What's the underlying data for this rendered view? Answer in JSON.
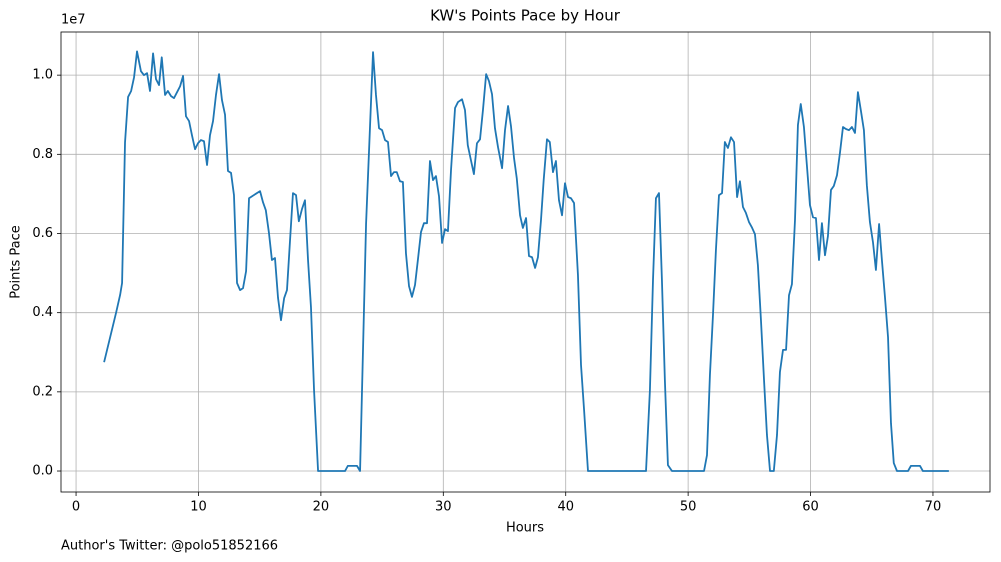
{
  "chart_data": {
    "type": "line",
    "title": "KW's Points Pace by Hour",
    "x_label": "Hours",
    "y_label": "Points Pace",
    "y_offset_label": "1e7",
    "footnote": "Author's Twitter: @polo51852166",
    "color": "#1f77b4",
    "grid": true,
    "xlim": [
      -1.23,
      74.66
    ],
    "ylim": [
      -0.053,
      1.109
    ],
    "xticks": [
      0,
      10,
      20,
      30,
      40,
      50,
      60,
      70
    ],
    "yticks": [
      {
        "value": 0,
        "label": "0.0"
      },
      0.2,
      0.4,
      0.6,
      0.8,
      {
        "value": 1,
        "label": "1.0"
      }
    ],
    "x": [
      2.29,
      3.27,
      3.6,
      3.76,
      4.0,
      4.25,
      4.5,
      4.74,
      4.98,
      5.3,
      5.55,
      5.8,
      6.04,
      6.29,
      6.53,
      6.78,
      7.0,
      7.27,
      7.5,
      7.76,
      8.0,
      8.25,
      8.5,
      8.74,
      8.98,
      9.23,
      9.47,
      9.72,
      9.96,
      10.2,
      10.45,
      10.7,
      10.94,
      11.19,
      11.43,
      11.68,
      11.92,
      12.17,
      12.41,
      12.66,
      12.9,
      13.15,
      13.4,
      13.64,
      13.89,
      14.13,
      14.38,
      14.62,
      15.03,
      15.27,
      15.5,
      15.76,
      16.0,
      16.25,
      16.5,
      16.74,
      17.0,
      17.23,
      17.48,
      17.72,
      17.97,
      18.2,
      18.46,
      18.7,
      18.95,
      19.19,
      19.44,
      19.77,
      21.97,
      22.2,
      22.95,
      23.2,
      23.69,
      24.26,
      24.5,
      24.75,
      25.0,
      25.24,
      25.48,
      25.73,
      25.97,
      26.2,
      26.46,
      26.7,
      26.95,
      27.2,
      27.44,
      27.69,
      27.93,
      28.18,
      28.42,
      28.67,
      28.91,
      29.16,
      29.4,
      29.65,
      29.9,
      30.14,
      30.38,
      30.63,
      30.96,
      31.2,
      31.53,
      31.77,
      32.0,
      32.26,
      32.5,
      32.75,
      33.0,
      33.24,
      33.5,
      33.73,
      33.98,
      34.22,
      34.47,
      34.8,
      35.04,
      35.29,
      35.53,
      35.78,
      36.0,
      36.27,
      36.5,
      36.76,
      37.0,
      37.25,
      37.5,
      37.73,
      37.98,
      38.2,
      38.47,
      38.7,
      38.96,
      39.2,
      39.45,
      39.7,
      39.94,
      40.19,
      40.43,
      40.68,
      41.0,
      41.25,
      41.5,
      41.82,
      46.56,
      46.88,
      47.13,
      47.37,
      47.62,
      47.86,
      48.1,
      48.35,
      48.68,
      51.3,
      51.54,
      51.78,
      52.03,
      52.27,
      52.52,
      52.77,
      53.0,
      53.25,
      53.5,
      53.75,
      54.0,
      54.23,
      54.48,
      54.72,
      54.97,
      55.2,
      55.46,
      55.7,
      55.95,
      56.2,
      56.44,
      56.69,
      57.0,
      57.26,
      57.5,
      57.75,
      58.0,
      58.24,
      58.48,
      58.73,
      58.97,
      59.2,
      59.46,
      59.7,
      59.95,
      60.2,
      60.44,
      60.69,
      60.93,
      61.18,
      61.42,
      61.67,
      61.9,
      62.16,
      62.4,
      62.65,
      62.89,
      63.14,
      63.38,
      63.63,
      63.87,
      64.12,
      64.36,
      64.6,
      64.85,
      65.1,
      65.34,
      65.6,
      65.83,
      66.08,
      66.33,
      66.57,
      66.8,
      67.06,
      67.96,
      68.2,
      68.94,
      69.18,
      71.3
    ],
    "values": [
      0.275,
      0.4,
      0.445,
      0.475,
      0.83,
      0.945,
      0.96,
      0.995,
      1.06,
      1.01,
      1.0,
      1.005,
      0.96,
      1.055,
      0.99,
      0.975,
      1.045,
      0.95,
      0.96,
      0.947,
      0.942,
      0.957,
      0.972,
      0.998,
      0.896,
      0.884,
      0.848,
      0.813,
      0.828,
      0.836,
      0.833,
      0.773,
      0.848,
      0.884,
      0.95,
      1.0025,
      0.937,
      0.9,
      0.758,
      0.753,
      0.697,
      0.475,
      0.457,
      0.462,
      0.505,
      0.689,
      0.694,
      0.699,
      0.707,
      0.679,
      0.659,
      0.601,
      0.533,
      0.538,
      0.437,
      0.381,
      0.437,
      0.457,
      0.583,
      0.702,
      0.697,
      0.631,
      0.662,
      0.684,
      0.533,
      0.414,
      0.205,
      0,
      0,
      0.013,
      0.013,
      0,
      0.624,
      1.058,
      0.95,
      0.866,
      0.861,
      0.836,
      0.831,
      0.745,
      0.755,
      0.755,
      0.732,
      0.73,
      0.55,
      0.467,
      0.44,
      0.47,
      0.535,
      0.604,
      0.626,
      0.626,
      0.783,
      0.735,
      0.745,
      0.694,
      0.576,
      0.611,
      0.606,
      0.76,
      0.917,
      0.932,
      0.939,
      0.912,
      0.823,
      0.785,
      0.75,
      0.828,
      0.838,
      0.912,
      1.0025,
      0.985,
      0.952,
      0.866,
      0.818,
      0.765,
      0.861,
      0.922,
      0.871,
      0.79,
      0.74,
      0.646,
      0.614,
      0.639,
      0.543,
      0.54,
      0.513,
      0.54,
      0.634,
      0.735,
      0.838,
      0.831,
      0.755,
      0.783,
      0.684,
      0.646,
      0.727,
      0.692,
      0.689,
      0.677,
      0.495,
      0.268,
      0.154,
      0,
      0,
      0.205,
      0.482,
      0.689,
      0.702,
      0.482,
      0.23,
      0.015,
      0,
      0,
      0.04,
      0.242,
      0.394,
      0.558,
      0.697,
      0.702,
      0.831,
      0.816,
      0.843,
      0.831,
      0.692,
      0.732,
      0.667,
      0.652,
      0.629,
      0.616,
      0.598,
      0.52,
      0.381,
      0.23,
      0.091,
      0,
      0,
      0.091,
      0.25,
      0.306,
      0.306,
      0.444,
      0.472,
      0.634,
      0.874,
      0.927,
      0.869,
      0.773,
      0.672,
      0.641,
      0.639,
      0.533,
      0.626,
      0.545,
      0.593,
      0.71,
      0.72,
      0.747,
      0.803,
      0.869,
      0.864,
      0.861,
      0.869,
      0.854,
      0.957,
      0.909,
      0.861,
      0.722,
      0.629,
      0.578,
      0.508,
      0.624,
      0.533,
      0.439,
      0.338,
      0.121,
      0.02,
      0,
      0,
      0.013,
      0.013,
      0,
      0
    ]
  }
}
